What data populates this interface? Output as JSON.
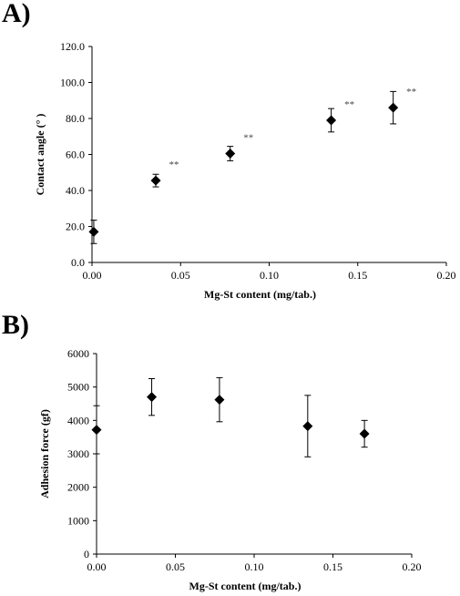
{
  "chart_data": [
    {
      "panel_label": "A)",
      "type": "scatter",
      "title": "",
      "xlabel": "Mg-St content (mg/tab.)",
      "ylabel": "Contact angle (°  )",
      "xlim": [
        0,
        0.2
      ],
      "ylim": [
        0,
        120
      ],
      "x_ticks": [
        0,
        0.05,
        0.1,
        0.15,
        0.2
      ],
      "x_tick_labels": [
        "0.00",
        "0.05",
        "0.10",
        "0.15",
        "0.20"
      ],
      "y_ticks": [
        0,
        20,
        40,
        60,
        80,
        100,
        120
      ],
      "y_tick_labels": [
        "0.0",
        "20.0",
        "40.0",
        "60.0",
        "80.0",
        "100.0",
        "120.0"
      ],
      "grid": false,
      "marker": "diamond",
      "points": [
        {
          "x": 0.001,
          "y": 17.0,
          "err": 6.5,
          "annotation": ""
        },
        {
          "x": 0.036,
          "y": 45.5,
          "err": 3.5,
          "annotation": "**"
        },
        {
          "x": 0.078,
          "y": 60.5,
          "err": 4.0,
          "annotation": "**"
        },
        {
          "x": 0.135,
          "y": 79.0,
          "err": 6.5,
          "annotation": "**"
        },
        {
          "x": 0.17,
          "y": 86.0,
          "err": 9.0,
          "annotation": "**"
        }
      ]
    },
    {
      "panel_label": "B)",
      "type": "scatter",
      "title": "",
      "xlabel": "Mg-St content (mg/tab.)",
      "ylabel": "Adhesion force (gf)",
      "xlim": [
        0,
        0.2
      ],
      "ylim": [
        0,
        6000
      ],
      "x_ticks": [
        0,
        0.05,
        0.1,
        0.15,
        0.2
      ],
      "x_tick_labels": [
        "0.00",
        "0.05",
        "0.10",
        "0.15",
        "0.20"
      ],
      "y_ticks": [
        0,
        1000,
        2000,
        3000,
        4000,
        5000,
        6000
      ],
      "y_tick_labels": [
        "0",
        "1000",
        "2000",
        "3000",
        "4000",
        "5000",
        "6000"
      ],
      "grid": false,
      "marker": "diamond",
      "points": [
        {
          "x": 0.0,
          "y": 3720,
          "err": 720,
          "annotation": ""
        },
        {
          "x": 0.035,
          "y": 4700,
          "err": 550,
          "annotation": ""
        },
        {
          "x": 0.078,
          "y": 4620,
          "err": 660,
          "annotation": ""
        },
        {
          "x": 0.134,
          "y": 3830,
          "err": 920,
          "annotation": ""
        },
        {
          "x": 0.17,
          "y": 3600,
          "err": 400,
          "annotation": ""
        }
      ]
    }
  ]
}
